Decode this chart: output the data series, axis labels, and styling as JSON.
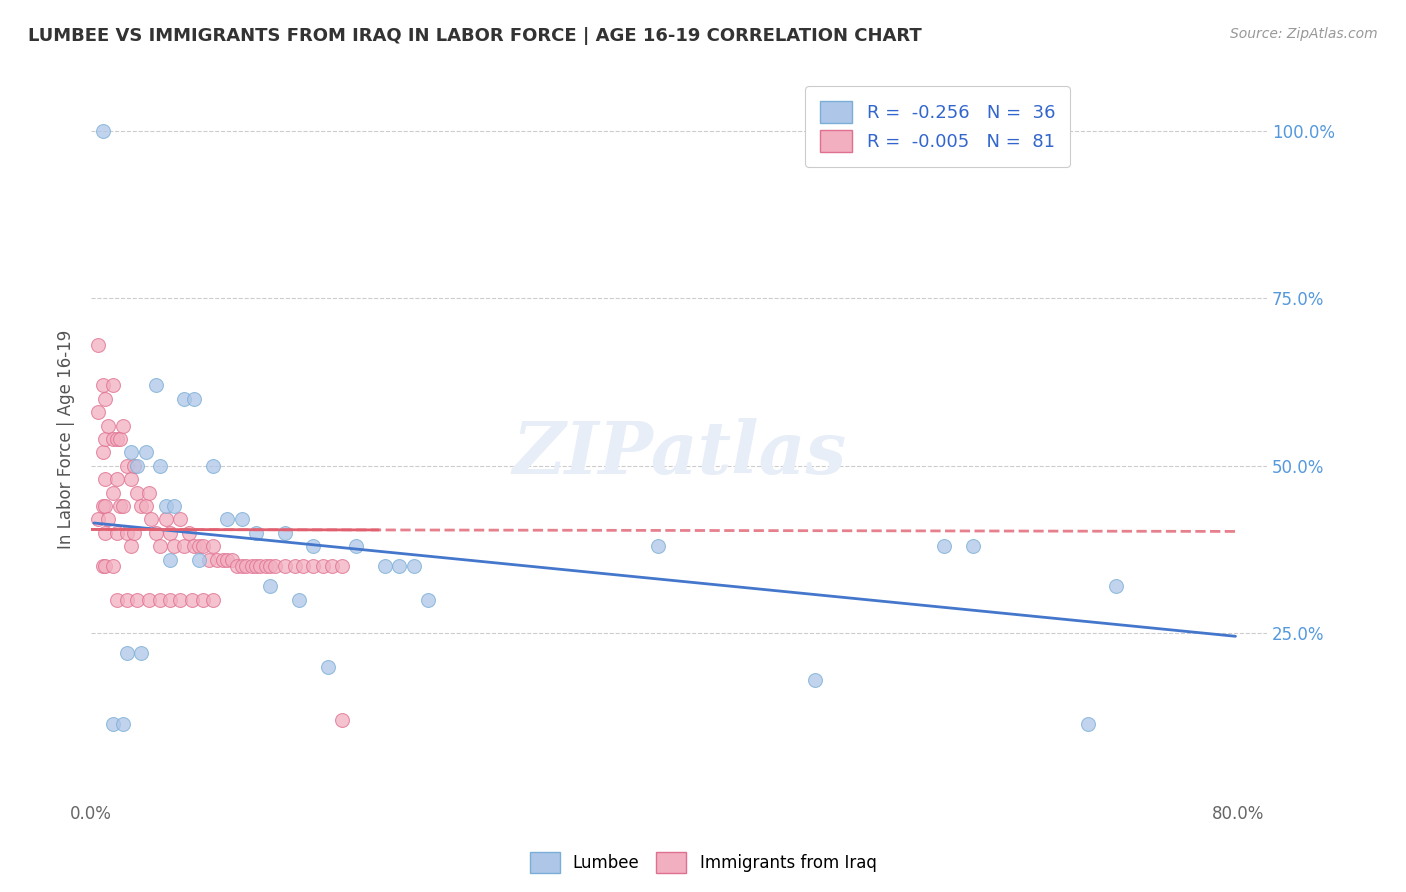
{
  "title": "LUMBEE VS IMMIGRANTS FROM IRAQ IN LABOR FORCE | AGE 16-19 CORRELATION CHART",
  "source": "Source: ZipAtlas.com",
  "ylabel": "In Labor Force | Age 16-19",
  "xlim": [
    0.0,
    0.82
  ],
  "ylim": [
    0.0,
    1.08
  ],
  "ytick_positions": [
    0.25,
    0.5,
    0.75,
    1.0
  ],
  "ytick_labels": [
    "25.0%",
    "50.0%",
    "75.0%",
    "100.0%"
  ],
  "grid_color": "#cccccc",
  "background_color": "#ffffff",
  "lumbee_color": "#aec6e8",
  "iraq_color": "#f2afc0",
  "lumbee_edge_color": "#7aaed6",
  "iraq_edge_color": "#e07090",
  "trendline_blue": "#4477cc",
  "trendline_pink": "#e06070",
  "legend_r_blue": "-0.256",
  "legend_n_blue": "36",
  "legend_r_pink": "-0.005",
  "legend_n_pink": "81",
  "lumbee_x": [
    0.008,
    0.015,
    0.022,
    0.028,
    0.032,
    0.038,
    0.045,
    0.048,
    0.052,
    0.058,
    0.065,
    0.072,
    0.085,
    0.095,
    0.105,
    0.115,
    0.135,
    0.155,
    0.165,
    0.185,
    0.205,
    0.215,
    0.225,
    0.235,
    0.025,
    0.035,
    0.055,
    0.075,
    0.125,
    0.145,
    0.395,
    0.505,
    0.595,
    0.615,
    0.695,
    0.715
  ],
  "lumbee_y": [
    1.0,
    0.115,
    0.115,
    0.52,
    0.5,
    0.52,
    0.62,
    0.5,
    0.44,
    0.44,
    0.6,
    0.6,
    0.5,
    0.42,
    0.42,
    0.4,
    0.4,
    0.38,
    0.2,
    0.38,
    0.35,
    0.35,
    0.35,
    0.3,
    0.22,
    0.22,
    0.36,
    0.36,
    0.32,
    0.3,
    0.38,
    0.18,
    0.38,
    0.38,
    0.115,
    0.32
  ],
  "iraq_x": [
    0.005,
    0.005,
    0.005,
    0.008,
    0.008,
    0.008,
    0.008,
    0.01,
    0.01,
    0.01,
    0.01,
    0.01,
    0.01,
    0.012,
    0.012,
    0.015,
    0.015,
    0.015,
    0.015,
    0.018,
    0.018,
    0.018,
    0.02,
    0.02,
    0.022,
    0.022,
    0.025,
    0.025,
    0.028,
    0.028,
    0.03,
    0.03,
    0.032,
    0.035,
    0.038,
    0.04,
    0.042,
    0.045,
    0.048,
    0.052,
    0.055,
    0.058,
    0.062,
    0.065,
    0.068,
    0.072,
    0.075,
    0.078,
    0.082,
    0.085,
    0.088,
    0.092,
    0.095,
    0.098,
    0.102,
    0.105,
    0.108,
    0.112,
    0.115,
    0.118,
    0.122,
    0.125,
    0.128,
    0.135,
    0.142,
    0.148,
    0.155,
    0.162,
    0.168,
    0.175,
    0.018,
    0.025,
    0.032,
    0.04,
    0.048,
    0.055,
    0.062,
    0.07,
    0.078,
    0.085,
    0.175
  ],
  "iraq_y": [
    0.68,
    0.58,
    0.42,
    0.62,
    0.52,
    0.44,
    0.35,
    0.6,
    0.54,
    0.48,
    0.44,
    0.4,
    0.35,
    0.56,
    0.42,
    0.62,
    0.54,
    0.46,
    0.35,
    0.54,
    0.48,
    0.4,
    0.54,
    0.44,
    0.56,
    0.44,
    0.5,
    0.4,
    0.48,
    0.38,
    0.5,
    0.4,
    0.46,
    0.44,
    0.44,
    0.46,
    0.42,
    0.4,
    0.38,
    0.42,
    0.4,
    0.38,
    0.42,
    0.38,
    0.4,
    0.38,
    0.38,
    0.38,
    0.36,
    0.38,
    0.36,
    0.36,
    0.36,
    0.36,
    0.35,
    0.35,
    0.35,
    0.35,
    0.35,
    0.35,
    0.35,
    0.35,
    0.35,
    0.35,
    0.35,
    0.35,
    0.35,
    0.35,
    0.35,
    0.35,
    0.3,
    0.3,
    0.3,
    0.3,
    0.3,
    0.3,
    0.3,
    0.3,
    0.3,
    0.3,
    0.12
  ],
  "marker_size": 100,
  "watermark": "ZIPatlas",
  "blue_trendline_x0": 0.0,
  "blue_trendline_y0": 0.415,
  "blue_trendline_x1": 0.8,
  "blue_trendline_y1": 0.245,
  "pink_trendline_x0": 0.0,
  "pink_trendline_y0": 0.405,
  "pink_trendline_x1": 0.8,
  "pink_trendline_y1": 0.402
}
